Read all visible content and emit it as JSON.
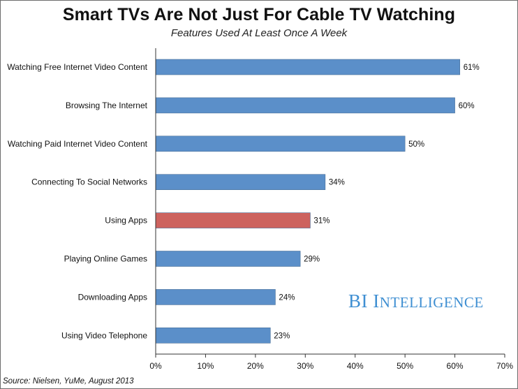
{
  "chart_data": {
    "type": "bar",
    "orientation": "horizontal",
    "title": "Smart TVs Are Not Just For Cable TV Watching",
    "subtitle": "Features Used At Least Once A Week",
    "categories": [
      "Watching Free Internet Video Content",
      "Browsing The Internet",
      "Watching Paid Internet Video Content",
      "Connecting To Social Networks",
      "Using Apps",
      "Playing Online Games",
      "Downloading Apps",
      "Using Video Telephone"
    ],
    "values": [
      61,
      60,
      50,
      34,
      31,
      29,
      24,
      23
    ],
    "value_labels": [
      "61%",
      "60%",
      "50%",
      "34%",
      "31%",
      "29%",
      "24%",
      "23%"
    ],
    "xlim": [
      0,
      70
    ],
    "xticks": [
      0,
      10,
      20,
      30,
      40,
      50,
      60,
      70
    ],
    "xtick_labels": [
      "0%",
      "10%",
      "20%",
      "30%",
      "40%",
      "50%",
      "60%",
      "70%"
    ],
    "highlight_category": "Using Apps",
    "colors": {
      "bar": "#5b8fc9",
      "highlight": "#cd625e",
      "brand": "#3f8fd2"
    },
    "grid": false,
    "legend": "none"
  },
  "source": "Source: Nielsen, YuMe, August 2013",
  "brand": {
    "first": "BI ",
    "big_I": "I",
    "rest": "NTELLIGENCE"
  }
}
